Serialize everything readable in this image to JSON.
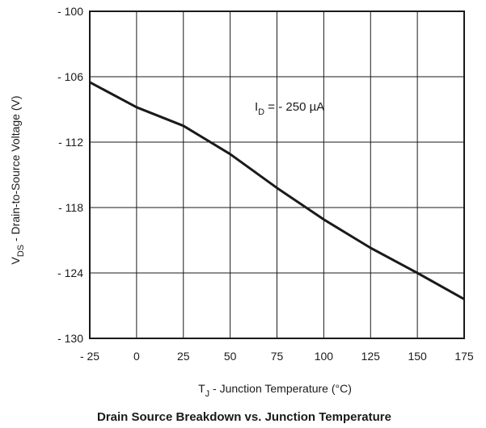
{
  "chart_data": {
    "type": "line",
    "title": "Drain Source Breakdown vs. Junction Temperature",
    "xlabel": {
      "main": "T",
      "sub": "J",
      "rest": " - Junction Temperature (°C)"
    },
    "ylabel": {
      "main": "V",
      "sub": "DS",
      "rest": " - Drain-to-Source Voltage (V)"
    },
    "annotation": {
      "main": "I",
      "sub": "D",
      "rest": " = - 250 µA"
    },
    "xlim": [
      -25,
      175
    ],
    "ylim": [
      -130,
      -100
    ],
    "x_ticks": [
      -25,
      0,
      25,
      50,
      75,
      100,
      125,
      150,
      175
    ],
    "x_tick_labels": [
      "- 25",
      "0",
      "25",
      "50",
      "75",
      "100",
      "125",
      "150",
      "175"
    ],
    "y_ticks": [
      -100,
      -106,
      -112,
      -118,
      -124,
      -130
    ],
    "y_tick_labels": [
      "- 100",
      "- 106",
      "- 112",
      "- 118",
      "- 124",
      "- 130"
    ],
    "grid": true,
    "series": [
      {
        "x": [
          -25,
          0,
          25,
          50,
          75,
          100,
          125,
          150,
          175
        ],
        "y": [
          -106.5,
          -108.8,
          -110.5,
          -113.1,
          -116.2,
          -119.1,
          -121.7,
          -124.0,
          -126.4
        ]
      }
    ],
    "line_color": "#1a1a1a"
  }
}
